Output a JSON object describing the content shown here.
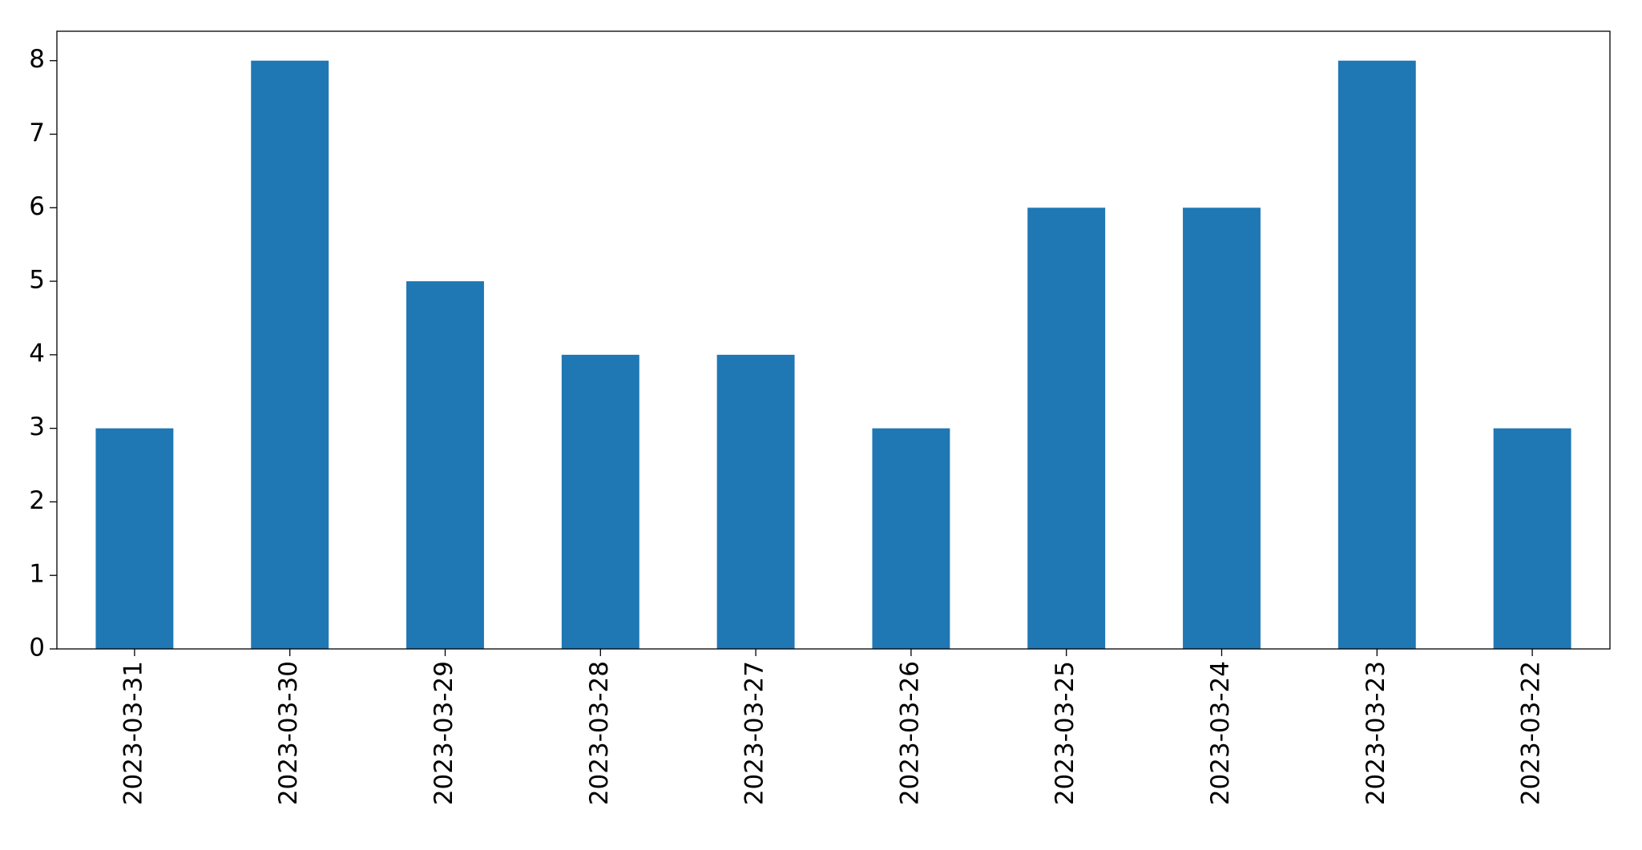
{
  "chart_data": {
    "type": "bar",
    "categories": [
      "2023-03-31",
      "2023-03-30",
      "2023-03-29",
      "2023-03-28",
      "2023-03-27",
      "2023-03-26",
      "2023-03-25",
      "2023-03-24",
      "2023-03-23",
      "2023-03-22"
    ],
    "values": [
      3,
      8,
      5,
      4,
      4,
      3,
      6,
      6,
      8,
      3
    ],
    "color": "#1f77b4",
    "ylim": [
      0,
      8.4
    ],
    "yticks": [
      0,
      1,
      2,
      3,
      4,
      5,
      6,
      7,
      8
    ],
    "grid": false
  }
}
